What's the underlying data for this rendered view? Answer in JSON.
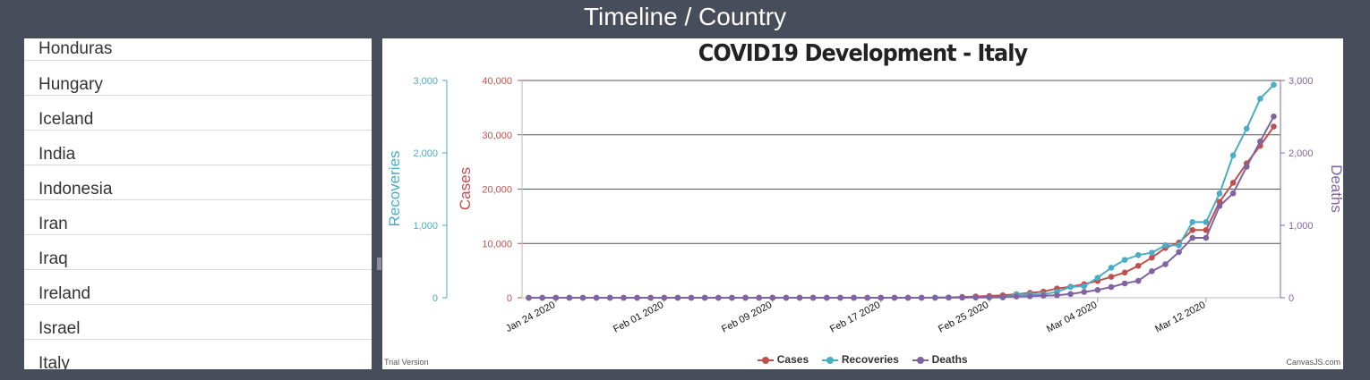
{
  "page": {
    "title": "Timeline / Country"
  },
  "countries": [
    "Honduras",
    "Hungary",
    "Iceland",
    "India",
    "Indonesia",
    "Iran",
    "Iraq",
    "Ireland",
    "Israel",
    "Italy"
  ],
  "colors": {
    "cases": "#c0504e",
    "recoveries": "#4aacc5",
    "deaths": "#8064a2",
    "background": "#474d5a"
  },
  "footer": {
    "trial": "Trial Version",
    "credit": "CanvasJS.com"
  },
  "chart_data": {
    "type": "line",
    "title": "COVID19 Development - Italy",
    "x_start": "2020-01-22",
    "x_ticks": [
      "Jan 24 2020",
      "Feb 01 2020",
      "Feb 09 2020",
      "Feb 17 2020",
      "Feb 25 2020",
      "Mar 04 2020",
      "Mar 12 2020"
    ],
    "axes": {
      "recoveries": {
        "label": "Recoveries",
        "range": [
          0,
          3000
        ],
        "ticks": [
          "0",
          "1,000",
          "2,000",
          "3,000"
        ]
      },
      "cases": {
        "label": "Cases",
        "range": [
          0,
          40000
        ],
        "ticks": [
          "0",
          "10,000",
          "20,000",
          "30,000",
          "40,000"
        ]
      },
      "deaths": {
        "label": "Deaths",
        "range": [
          0,
          3000
        ],
        "ticks": [
          "0",
          "1,000",
          "2,000",
          "3,000"
        ]
      }
    },
    "grid": true,
    "legend": "bottom",
    "series": [
      {
        "name": "Cases",
        "axis": "cases",
        "values": [
          0,
          0,
          0,
          0,
          0,
          0,
          0,
          0,
          0,
          2,
          2,
          2,
          2,
          2,
          2,
          2,
          3,
          3,
          3,
          3,
          3,
          3,
          3,
          3,
          3,
          3,
          3,
          3,
          3,
          3,
          20,
          62,
          155,
          229,
          322,
          453,
          655,
          888,
          1128,
          1694,
          2036,
          2502,
          3089,
          3858,
          4636,
          5883,
          7375,
          9172,
          10149,
          12462,
          12462,
          17660,
          21157,
          24747,
          27980,
          31506
        ]
      },
      {
        "name": "Recoveries",
        "axis": "recoveries",
        "values": [
          0,
          0,
          0,
          0,
          0,
          0,
          0,
          0,
          0,
          0,
          0,
          0,
          0,
          0,
          0,
          0,
          0,
          0,
          0,
          0,
          0,
          0,
          0,
          0,
          0,
          0,
          0,
          0,
          0,
          0,
          0,
          1,
          1,
          1,
          1,
          3,
          45,
          46,
          46,
          83,
          149,
          160,
          276,
          414,
          523,
          589,
          622,
          724,
          724,
          1045,
          1045,
          1439,
          1966,
          2335,
          2749,
          2941
        ]
      },
      {
        "name": "Deaths",
        "axis": "deaths",
        "values": [
          0,
          0,
          0,
          0,
          0,
          0,
          0,
          0,
          0,
          0,
          0,
          0,
          0,
          0,
          0,
          0,
          0,
          0,
          0,
          0,
          0,
          0,
          0,
          0,
          0,
          0,
          0,
          0,
          0,
          0,
          1,
          2,
          3,
          7,
          10,
          12,
          17,
          21,
          29,
          34,
          52,
          79,
          107,
          148,
          197,
          233,
          366,
          463,
          631,
          827,
          827,
          1266,
          1441,
          1809,
          2158,
          2503
        ]
      }
    ]
  }
}
